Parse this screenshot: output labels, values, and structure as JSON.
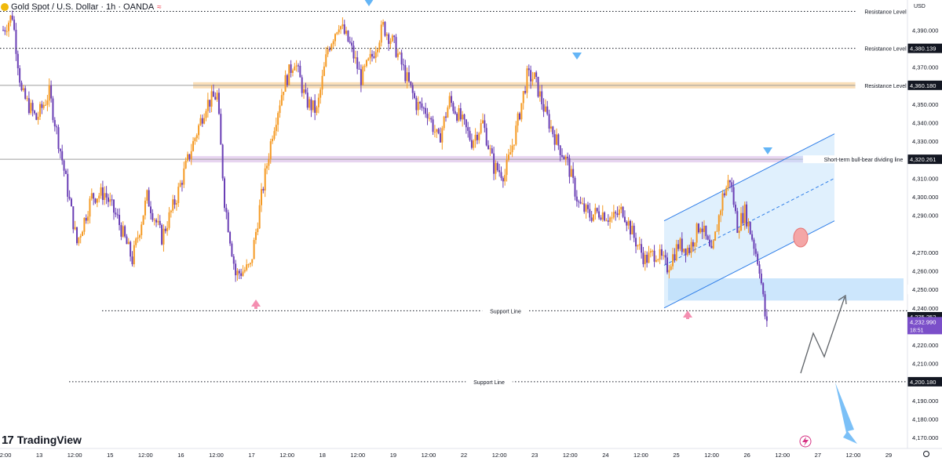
{
  "header": {
    "title": "Gold Spot / U.S. Dollar · 1h · OANDA",
    "wave_icon": "≈"
  },
  "brand": {
    "logo_icon": "tradingview-logo-icon",
    "label": "TradingView"
  },
  "colors": {
    "up": "#f59a23",
    "down": "#6a3fb5",
    "zone_orange": "#f7c98a",
    "zone_purple": "#d7b8e6",
    "channel": "#2f7ee8",
    "arrow_blue": "#64b5f6",
    "arrow_pink": "#f48fb1"
  },
  "chart_data": {
    "type": "candlestick",
    "title": "",
    "price_axis": {
      "currency": "USD",
      "range": [
        4165,
        4402
      ],
      "ticks": [
        "4,390.000",
        "4,370.000",
        "4,350.000",
        "4,340.000",
        "4,330.000",
        "4,310.000",
        "4,300.000",
        "4,290.000",
        "4,270.000",
        "4,260.000",
        "4,240.000",
        "4,220.000",
        "4,210.000",
        "4,190.000",
        "4,180.000",
        "4,170.000"
      ]
    },
    "time_axis": {
      "labels": [
        "12:00",
        "13",
        "12:00",
        "15",
        "12:00",
        "16",
        "12:00",
        "17",
        "12:00",
        "18",
        "12:00",
        "19",
        "12:00",
        "22",
        "12:00",
        "23",
        "12:00",
        "24",
        "12:00",
        "25",
        "12:00",
        "26",
        "12:00",
        "27",
        "12:00",
        "29"
      ]
    },
    "price_path": [
      {
        "t": 0,
        "p": 4390
      },
      {
        "t": 5,
        "p": 4398
      },
      {
        "t": 10,
        "p": 4356
      },
      {
        "t": 18,
        "p": 4342
      },
      {
        "t": 25,
        "p": 4356
      },
      {
        "t": 32,
        "p": 4320
      },
      {
        "t": 40,
        "p": 4275
      },
      {
        "t": 48,
        "p": 4300
      },
      {
        "t": 55,
        "p": 4302
      },
      {
        "t": 62,
        "p": 4288
      },
      {
        "t": 70,
        "p": 4266
      },
      {
        "t": 78,
        "p": 4300
      },
      {
        "t": 86,
        "p": 4278
      },
      {
        "t": 94,
        "p": 4300
      },
      {
        "t": 102,
        "p": 4326
      },
      {
        "t": 110,
        "p": 4350
      },
      {
        "t": 116,
        "p": 4355
      },
      {
        "t": 120,
        "p": 4298
      },
      {
        "t": 126,
        "p": 4258
      },
      {
        "t": 134,
        "p": 4262
      },
      {
        "t": 140,
        "p": 4300
      },
      {
        "t": 146,
        "p": 4335
      },
      {
        "t": 152,
        "p": 4360
      },
      {
        "t": 158,
        "p": 4374
      },
      {
        "t": 164,
        "p": 4352
      },
      {
        "t": 170,
        "p": 4346
      },
      {
        "t": 176,
        "p": 4380
      },
      {
        "t": 182,
        "p": 4394
      },
      {
        "t": 188,
        "p": 4382
      },
      {
        "t": 194,
        "p": 4364
      },
      {
        "t": 200,
        "p": 4376
      },
      {
        "t": 206,
        "p": 4392
      },
      {
        "t": 212,
        "p": 4382
      },
      {
        "t": 218,
        "p": 4366
      },
      {
        "t": 224,
        "p": 4350
      },
      {
        "t": 230,
        "p": 4346
      },
      {
        "t": 236,
        "p": 4330
      },
      {
        "t": 242,
        "p": 4352
      },
      {
        "t": 248,
        "p": 4342
      },
      {
        "t": 254,
        "p": 4330
      },
      {
        "t": 260,
        "p": 4340
      },
      {
        "t": 266,
        "p": 4316
      },
      {
        "t": 272,
        "p": 4312
      },
      {
        "t": 278,
        "p": 4336
      },
      {
        "t": 284,
        "p": 4365
      },
      {
        "t": 288,
        "p": 4364
      },
      {
        "t": 294,
        "p": 4345
      },
      {
        "t": 300,
        "p": 4330
      },
      {
        "t": 306,
        "p": 4318
      },
      {
        "t": 312,
        "p": 4296
      },
      {
        "t": 318,
        "p": 4290
      },
      {
        "t": 324,
        "p": 4292
      },
      {
        "t": 330,
        "p": 4288
      },
      {
        "t": 336,
        "p": 4293
      },
      {
        "t": 342,
        "p": 4278
      },
      {
        "t": 348,
        "p": 4266
      },
      {
        "t": 354,
        "p": 4270
      },
      {
        "t": 360,
        "p": 4262
      },
      {
        "t": 366,
        "p": 4274
      },
      {
        "t": 372,
        "p": 4272
      },
      {
        "t": 378,
        "p": 4286
      },
      {
        "t": 384,
        "p": 4268
      },
      {
        "t": 390,
        "p": 4300
      },
      {
        "t": 394,
        "p": 4310
      },
      {
        "t": 398,
        "p": 4284
      },
      {
        "t": 402,
        "p": 4292
      },
      {
        "t": 406,
        "p": 4278
      },
      {
        "t": 410,
        "p": 4262
      },
      {
        "t": 413,
        "p": 4236
      },
      {
        "t": 414,
        "p": 4233
      }
    ],
    "horizontal_levels": [
      {
        "label": "Resistance Level",
        "price": 4400.1,
        "price_label": "",
        "style": "dotted"
      },
      {
        "label": "Resistance Level",
        "price": 4380.139,
        "price_label": "4,380.139",
        "style": "dotted"
      },
      {
        "label": "Resistance Level",
        "price": 4360.18,
        "price_label": "4,360.180",
        "style": "zone"
      },
      {
        "label": "Short-term bull-bear dividing line",
        "price": 4320.261,
        "price_label": "4,320.261",
        "style": "zone"
      },
      {
        "label": "Support Line",
        "price": 4238.5,
        "price_label": "",
        "style": "dotted"
      },
      {
        "label": "Support Line",
        "price": 4200.18,
        "price_label": "4,200.180",
        "style": "dotted"
      }
    ],
    "price_tags": [
      {
        "price": 4250.0,
        "label": "4,250.000",
        "kind": "plain"
      },
      {
        "price": 4235.252,
        "label": "4,235.252",
        "kind": "dark"
      },
      {
        "price": 4232.99,
        "label": "4,232.990",
        "kind": "current",
        "countdown": "18:51"
      }
    ],
    "annotations": {
      "ascending_channel": "bullish channel (rising)",
      "demand_zone": [
        4244,
        4256
      ],
      "projected_path": "rebound then drop",
      "markers": [
        "arrow-down at 18 high",
        "arrow-down at 23 high",
        "arrow-down at channel top",
        "arrow-up at 17 low",
        "arrow-up at 24 low",
        "circle at channel break"
      ]
    }
  }
}
